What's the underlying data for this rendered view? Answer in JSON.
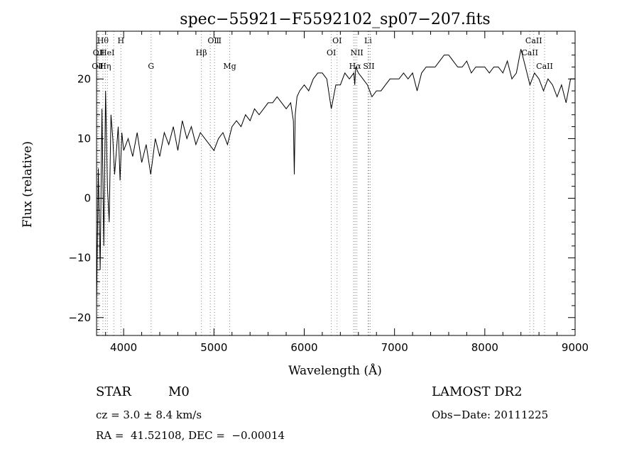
{
  "chart_data": {
    "type": "line",
    "title": "spec−55921−F5592102_sp07−207.fits",
    "xlabel": "Wavelength (Å)",
    "ylabel": "Flux (relative)",
    "xlim": [
      3700,
      9000
    ],
    "ylim": [
      -23,
      28
    ],
    "x_ticks": [
      4000,
      5000,
      6000,
      7000,
      8000,
      9000
    ],
    "y_ticks": [
      -20,
      -10,
      0,
      10,
      20
    ],
    "y_tick_labels": [
      "−20",
      "−10",
      "0",
      "10",
      "20"
    ],
    "grid": false,
    "line_color": "#000000",
    "marker_line_color": "#888888",
    "series": [
      {
        "x": [
          3700,
          3720,
          3740,
          3760,
          3780,
          3800,
          3820,
          3840,
          3860,
          3880,
          3900,
          3920,
          3940,
          3960,
          3980,
          4000,
          4050,
          4100,
          4150,
          4200,
          4250,
          4300,
          4350,
          4400,
          4450,
          4500,
          4550,
          4600,
          4650,
          4700,
          4750,
          4800,
          4850,
          4900,
          4950,
          5000,
          5050,
          5100,
          5150,
          5200,
          5250,
          5300,
          5350,
          5400,
          5450,
          5500,
          5550,
          5600,
          5650,
          5700,
          5750,
          5800,
          5850,
          5880,
          5890,
          5900,
          5920,
          5950,
          6000,
          6050,
          6100,
          6150,
          6200,
          6250,
          6300,
          6350,
          6400,
          6450,
          6500,
          6550,
          6560,
          6570,
          6600,
          6650,
          6700,
          6750,
          6800,
          6850,
          6900,
          6950,
          7000,
          7050,
          7100,
          7150,
          7200,
          7250,
          7300,
          7350,
          7400,
          7450,
          7500,
          7550,
          7600,
          7650,
          7700,
          7750,
          7800,
          7850,
          7900,
          7950,
          8000,
          8050,
          8100,
          8150,
          8200,
          8250,
          8300,
          8350,
          8400,
          8450,
          8500,
          8550,
          8600,
          8650,
          8700,
          8750,
          8800,
          8850,
          8900,
          8950,
          9000
        ],
        "y": [
          -18,
          5,
          -12,
          15,
          -8,
          18,
          2,
          -4,
          14,
          10,
          4,
          8,
          12,
          3,
          11,
          8,
          10,
          7,
          11,
          6,
          9,
          4,
          10,
          7,
          11,
          9,
          12,
          8,
          13,
          10,
          12,
          9,
          11,
          10,
          9,
          8,
          10,
          11,
          9,
          12,
          13,
          12,
          14,
          13,
          15,
          14,
          15,
          16,
          16,
          17,
          16,
          15,
          16,
          13,
          4,
          14,
          17,
          18,
          19,
          18,
          20,
          21,
          21,
          20,
          15,
          19,
          19,
          21,
          20,
          21,
          19,
          22,
          21,
          20,
          19,
          17,
          18,
          18,
          19,
          20,
          20,
          20,
          21,
          20,
          21,
          18,
          21,
          22,
          22,
          22,
          23,
          24,
          24,
          23,
          22,
          22,
          23,
          21,
          22,
          22,
          22,
          21,
          22,
          22,
          21,
          23,
          20,
          21,
          25,
          22,
          19,
          21,
          20,
          18,
          20,
          19,
          17,
          19,
          16,
          20,
          20
        ]
      }
    ],
    "line_markers": [
      {
        "x": 3712,
        "label": "OⅡ",
        "row": 3
      },
      {
        "x": 3723,
        "label": "OⅡ",
        "row": 2
      },
      {
        "x": 3770,
        "label": "Hθ",
        "row": 1
      },
      {
        "x": 3797,
        "label": "Hη",
        "row": 3
      },
      {
        "x": 3820,
        "label": "HeI",
        "row": 2
      },
      {
        "x": 3890,
        "label": "",
        "row": 1
      },
      {
        "x": 3970,
        "label": "H",
        "row": 1
      },
      {
        "x": 4304,
        "label": "G",
        "row": 3
      },
      {
        "x": 4861,
        "label": "Hβ",
        "row": 2
      },
      {
        "x": 4959,
        "label": "",
        "row": 1
      },
      {
        "x": 5007,
        "label": "OⅢ",
        "row": 1
      },
      {
        "x": 5175,
        "label": "Mg",
        "row": 3
      },
      {
        "x": 6300,
        "label": "OI",
        "row": 2
      },
      {
        "x": 6364,
        "label": "OI",
        "row": 1
      },
      {
        "x": 6548,
        "label": "",
        "row": 2
      },
      {
        "x": 6563,
        "label": "Hα",
        "row": 3
      },
      {
        "x": 6583,
        "label": "NII",
        "row": 2
      },
      {
        "x": 6707,
        "label": "Li",
        "row": 1
      },
      {
        "x": 6716,
        "label": "SII",
        "row": 3
      },
      {
        "x": 6731,
        "label": "",
        "row": 3
      },
      {
        "x": 8498,
        "label": "CaII",
        "row": 2
      },
      {
        "x": 8542,
        "label": "CaII",
        "row": 1
      },
      {
        "x": 8662,
        "label": "CaII",
        "row": 3
      }
    ]
  },
  "info": {
    "object_class": "STAR",
    "subclass": "M0",
    "survey": "LAMOST DR2",
    "cz": "cz = 3.0 ± 8.4 km/s",
    "obs_date": "Obs−Date: 20111225",
    "coords": "RA =  41.52108, DEC =  −0.00014"
  }
}
